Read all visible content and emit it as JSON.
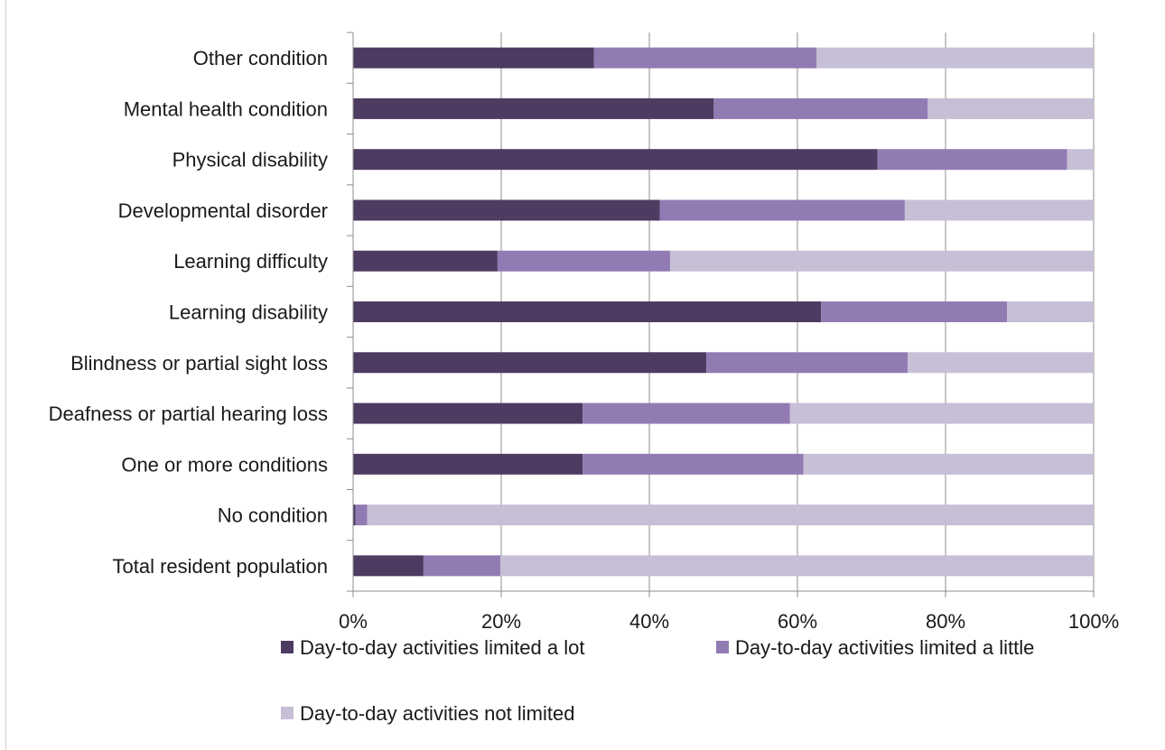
{
  "chart_data": {
    "type": "bar",
    "orientation": "horizontal",
    "stacked": true,
    "title": "",
    "xlabel": "",
    "ylabel": "",
    "xlim": [
      0,
      100
    ],
    "x_ticks": [
      "0%",
      "20%",
      "40%",
      "60%",
      "80%",
      "100%"
    ],
    "grid": true,
    "legend_position": "bottom",
    "categories": [
      "Other condition",
      "Mental health condition",
      "Physical disability",
      "Developmental disorder",
      "Learning difficulty",
      "Learning disability",
      "Blindness or partial sight loss",
      "Deafness or partial hearing loss",
      "One or more conditions",
      "No condition",
      "Total resident population"
    ],
    "series": [
      {
        "name": "Day-to-day activities limited a lot",
        "color": "#4d3b61",
        "values": [
          32.5,
          48.7,
          70.8,
          41.4,
          19.5,
          63.2,
          47.7,
          31.0,
          31.0,
          0.3,
          9.5
        ]
      },
      {
        "name": "Day-to-day activities limited a little",
        "color": "#927bb3",
        "values": [
          30.1,
          28.9,
          25.6,
          33.1,
          23.3,
          25.1,
          27.2,
          28.0,
          29.8,
          1.6,
          10.4
        ]
      },
      {
        "name": "Day-to-day activities not limited",
        "color": "#c6bfd6",
        "values": [
          37.4,
          22.4,
          3.6,
          25.5,
          57.2,
          11.7,
          25.1,
          41.0,
          39.2,
          98.1,
          80.1
        ]
      }
    ]
  }
}
